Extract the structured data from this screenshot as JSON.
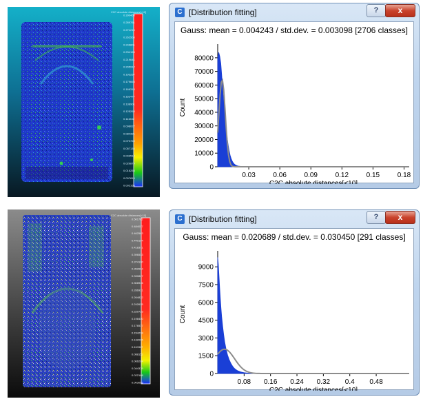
{
  "viewports": [
    {
      "scale_labels": [
        "0.300468",
        "0.289761",
        "0.274215",
        "0.262568",
        "0.246801",
        "0.234158",
        "0.219641",
        "0.205912",
        "0.193257",
        "0.179663",
        "0.166318",
        "0.152477",
        "0.138901",
        "0.125263",
        "0.111632",
        "0.098027",
        "0.084391",
        "0.070769",
        "0.057136",
        "0.043512",
        "0.029879",
        "0.016253",
        "0.007815",
        "0.002164"
      ]
    },
    {
      "scale_labels": [
        "0.501782",
        "0.484017",
        "0.462563",
        "0.440194",
        "0.418371",
        "0.396513",
        "0.374120",
        "0.352664",
        "0.330827",
        "0.308946",
        "0.286931",
        "0.264822",
        "0.242615",
        "0.220733",
        "0.198410",
        "0.176537",
        "0.154218",
        "0.132095",
        "0.110327",
        "0.088152",
        "0.066204",
        "0.044379",
        "0.022168",
        "0.003055"
      ]
    }
  ],
  "dialogs": [
    {
      "title": "[Distribution fitting]",
      "icon": "cloudcompare-icon",
      "help_button": "?",
      "close_button": "x",
      "stats": "Gauss: mean = 0.004243 / std.dev. = 0.003098 [2706 classes]",
      "chart_data": {
        "type": "area",
        "xlabel": "C2C absolute distances[<10]",
        "ylabel": "Count",
        "xlim": [
          0,
          0.185
        ],
        "ylim": [
          0,
          87000
        ],
        "x_ticks": [
          0.03,
          0.06,
          0.09,
          0.12,
          0.15,
          0.18
        ],
        "x_tick_labels": [
          "0.03",
          "0.06",
          "0.09",
          "0.12",
          "0.15",
          "0.18"
        ],
        "y_ticks": [
          0,
          10000,
          20000,
          30000,
          40000,
          50000,
          60000,
          70000,
          80000
        ],
        "y_tick_labels": [
          "0",
          "10000",
          "20000",
          "30000",
          "40000",
          "50000",
          "60000",
          "70000",
          "80000"
        ],
        "series": [
          {
            "kind": "histogram",
            "color": "#1a3fd6",
            "x": [
              0.0,
              0.001,
              0.002,
              0.003,
              0.004,
              0.005,
              0.006,
              0.007,
              0.008,
              0.009,
              0.01,
              0.011,
              0.012,
              0.013,
              0.014,
              0.015,
              0.016,
              0.017,
              0.018,
              0.019,
              0.02,
              0.022,
              0.024,
              0.026,
              0.03
            ],
            "y": [
              80000,
              84000,
              81000,
              76000,
              66000,
              56000,
              46000,
              37000,
              29000,
              22000,
              16500,
              12000,
              8500,
              6000,
              4200,
              2900,
              2000,
              1400,
              1000,
              700,
              500,
              300,
              160,
              80,
              0
            ]
          },
          {
            "kind": "gauss-fit",
            "color": "#8c8c8c",
            "mean": 0.004243,
            "std": 0.003098,
            "peak": 64000
          }
        ]
      }
    },
    {
      "title": "[Distribution fitting]",
      "icon": "cloudcompare-icon",
      "help_button": "?",
      "close_button": "x",
      "stats": "Gauss: mean = 0.020689 / std.dev. = 0.030450 [291 classes]",
      "chart_data": {
        "type": "area",
        "xlabel": "C2C absolute distances[<10]",
        "ylabel": "Count",
        "xlim": [
          0,
          0.58
        ],
        "ylim": [
          0,
          10000
        ],
        "x_ticks": [
          0.08,
          0.16,
          0.24,
          0.32,
          0.4,
          0.48
        ],
        "x_tick_labels": [
          "0.08",
          "0.16",
          "0.24",
          "0.32",
          "0.4",
          "0.48"
        ],
        "y_ticks": [
          0,
          1500,
          3000,
          4500,
          6000,
          7500,
          9000
        ],
        "y_tick_labels": [
          "0",
          "1500",
          "3000",
          "4500",
          "6000",
          "7500",
          "9000"
        ],
        "series": [
          {
            "kind": "histogram",
            "color": "#1a3fd6",
            "x": [
              0.0,
              0.002,
              0.004,
              0.006,
              0.008,
              0.01,
              0.012,
              0.015,
              0.018,
              0.021,
              0.025,
              0.03,
              0.035,
              0.04,
              0.045,
              0.05,
              0.055,
              0.06,
              0.07,
              0.08,
              0.09,
              0.1,
              0.11,
              0.12,
              0.14
            ],
            "y": [
              9800,
              9200,
              8200,
              7200,
              6300,
              5500,
              4800,
              4000,
              3300,
              2700,
              2100,
              1550,
              1150,
              850,
              620,
              450,
              330,
              240,
              130,
              70,
              40,
              22,
              12,
              6,
              0
            ]
          },
          {
            "kind": "gauss-fit",
            "color": "#8c8c8c",
            "mean": 0.020689,
            "std": 0.03045,
            "peak": 2050
          }
        ]
      }
    }
  ]
}
